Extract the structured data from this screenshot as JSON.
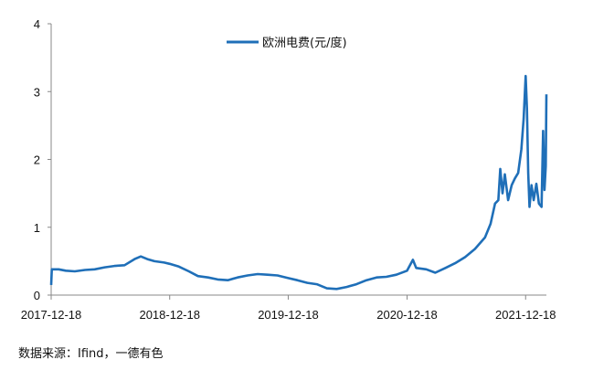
{
  "chart_data": {
    "type": "line",
    "title": "",
    "xlabel": "",
    "ylabel": "",
    "ylim": [
      0,
      4
    ],
    "yticks": [
      "0",
      "1",
      "2",
      "3",
      "4"
    ],
    "xlim": [
      "2017-12-18",
      "2022-02-20"
    ],
    "xticks": [
      "2017-12-18",
      "2018-12-18",
      "2019-12-18",
      "2020-12-18",
      "2021-12-18"
    ],
    "grid": false,
    "legend_position": "top",
    "line_color": "#1F6FB8",
    "series": [
      {
        "name": "欧洲电费(元/度)",
        "points": [
          [
            "2017-12-18",
            0.15
          ],
          [
            "2017-12-20",
            0.38
          ],
          [
            "2018-01-10",
            0.38
          ],
          [
            "2018-02-01",
            0.36
          ],
          [
            "2018-03-01",
            0.35
          ],
          [
            "2018-04-01",
            0.37
          ],
          [
            "2018-05-01",
            0.38
          ],
          [
            "2018-06-01",
            0.41
          ],
          [
            "2018-07-01",
            0.43
          ],
          [
            "2018-08-01",
            0.44
          ],
          [
            "2018-09-01",
            0.53
          ],
          [
            "2018-09-20",
            0.57
          ],
          [
            "2018-10-10",
            0.53
          ],
          [
            "2018-11-01",
            0.5
          ],
          [
            "2018-12-01",
            0.48
          ],
          [
            "2018-12-18",
            0.46
          ],
          [
            "2019-01-15",
            0.42
          ],
          [
            "2019-02-15",
            0.35
          ],
          [
            "2019-03-15",
            0.28
          ],
          [
            "2019-04-15",
            0.26
          ],
          [
            "2019-05-15",
            0.23
          ],
          [
            "2019-06-15",
            0.22
          ],
          [
            "2019-07-15",
            0.26
          ],
          [
            "2019-08-15",
            0.29
          ],
          [
            "2019-09-15",
            0.31
          ],
          [
            "2019-10-15",
            0.3
          ],
          [
            "2019-11-15",
            0.29
          ],
          [
            "2019-12-18",
            0.25
          ],
          [
            "2020-01-15",
            0.22
          ],
          [
            "2020-02-15",
            0.18
          ],
          [
            "2020-03-15",
            0.16
          ],
          [
            "2020-04-15",
            0.1
          ],
          [
            "2020-05-15",
            0.09
          ],
          [
            "2020-06-15",
            0.12
          ],
          [
            "2020-07-15",
            0.16
          ],
          [
            "2020-08-15",
            0.22
          ],
          [
            "2020-09-15",
            0.26
          ],
          [
            "2020-10-15",
            0.27
          ],
          [
            "2020-11-15",
            0.3
          ],
          [
            "2020-12-18",
            0.36
          ],
          [
            "2021-01-05",
            0.52
          ],
          [
            "2021-01-15",
            0.4
          ],
          [
            "2021-02-15",
            0.38
          ],
          [
            "2021-03-15",
            0.33
          ],
          [
            "2021-04-15",
            0.4
          ],
          [
            "2021-05-15",
            0.47
          ],
          [
            "2021-06-15",
            0.56
          ],
          [
            "2021-07-15",
            0.68
          ],
          [
            "2021-08-15",
            0.85
          ],
          [
            "2021-09-01",
            1.05
          ],
          [
            "2021-09-15",
            1.35
          ],
          [
            "2021-09-25",
            1.4
          ],
          [
            "2021-10-01",
            1.86
          ],
          [
            "2021-10-08",
            1.5
          ],
          [
            "2021-10-15",
            1.78
          ],
          [
            "2021-10-25",
            1.4
          ],
          [
            "2021-11-05",
            1.62
          ],
          [
            "2021-11-15",
            1.72
          ],
          [
            "2021-11-25",
            1.8
          ],
          [
            "2021-12-05",
            2.15
          ],
          [
            "2021-12-12",
            2.6
          ],
          [
            "2021-12-18",
            3.23
          ],
          [
            "2021-12-22",
            2.75
          ],
          [
            "2021-12-26",
            1.8
          ],
          [
            "2021-12-30",
            1.3
          ],
          [
            "2022-01-05",
            1.62
          ],
          [
            "2022-01-12",
            1.4
          ],
          [
            "2022-01-20",
            1.64
          ],
          [
            "2022-01-28",
            1.35
          ],
          [
            "2022-02-05",
            1.3
          ],
          [
            "2022-02-10",
            2.42
          ],
          [
            "2022-02-14",
            1.55
          ],
          [
            "2022-02-18",
            1.9
          ],
          [
            "2022-02-20",
            2.96
          ]
        ]
      }
    ]
  },
  "footer": {
    "source": "数据来源：Ifind，一德有色"
  }
}
